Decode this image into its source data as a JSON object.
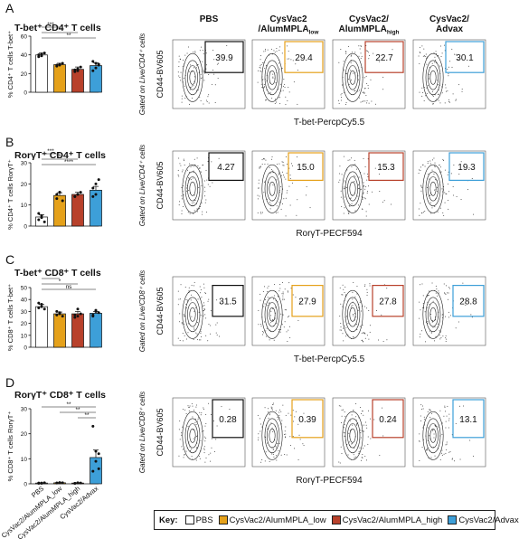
{
  "colors": {
    "pbs": "#ffffff",
    "low": "#e5a11a",
    "high": "#b8412b",
    "advax": "#3d9fd8"
  },
  "panels": [
    {
      "letter": "A",
      "title": "T-bet⁺ CD4⁺ T cells",
      "ylabel": "% CD4⁺ T cells T-bet⁺",
      "yticks": [
        "0",
        "20",
        "40",
        "60"
      ],
      "sig": [
        "***",
        "***",
        "**"
      ],
      "gate": "Gated on Live/CD4⁺ cells",
      "xlabel": "T-bet-PercpCy5.5",
      "ylabel_flow": "CD44-BV605",
      "gate_values": [
        "39.9",
        "29.4",
        "22.7",
        "30.1"
      ]
    },
    {
      "letter": "B",
      "title": "RorγT⁺ CD4⁺ T cells",
      "ylabel": "% CD4⁺ T cells RorγT⁺",
      "yticks": [
        "0",
        "10",
        "20",
        "30"
      ],
      "sig": [
        "***",
        "***",
        "****"
      ],
      "gate": "Gated on Live/CD4⁺ cells",
      "xlabel": "RorγT-PECF594",
      "ylabel_flow": "CD44-BV605",
      "gate_values": [
        "4.27",
        "15.0",
        "15.3",
        "19.3"
      ]
    },
    {
      "letter": "C",
      "title": "T-bet⁺ CD8⁺ T cells",
      "ylabel": "% CD8⁺ T cells T-bet⁺",
      "yticks": [
        "0",
        "10",
        "20",
        "30",
        "40",
        "50"
      ],
      "sig": [
        "*",
        "*",
        "ns"
      ],
      "gate": "Gated on Live/CD8⁺ cells",
      "xlabel": "T-bet-PercpCy5.5",
      "ylabel_flow": "CD44-BV605",
      "gate_values": [
        "31.5",
        "27.9",
        "27.8",
        "28.8"
      ]
    },
    {
      "letter": "D",
      "title": "RorγT⁺ CD8⁺ T cells",
      "ylabel": "% CD8⁺ T cells RorγT⁺",
      "yticks": [
        "0",
        "10",
        "20",
        "30"
      ],
      "sig": [
        "**",
        "**",
        "**"
      ],
      "gate": "Gated on Live/CD8⁺ cells",
      "xlabel": "RorγT-PECF594",
      "ylabel_flow": "CD44-BV605",
      "gate_values": [
        "0.28",
        "0.39",
        "0.24",
        "13.1"
      ]
    }
  ],
  "column_headers": [
    "PBS",
    "CysVac2\n/AlumMPLA_low",
    "CysVac2/\nAlumMPLA_high",
    "CysVac2/\nAdvax"
  ],
  "x_categories": [
    "PBS",
    "CysVac2/AlumMPLA_low",
    "CysVac2/AlumMPLA_high",
    "CysVac2/Advax"
  ],
  "key": {
    "label": "Key:",
    "items": [
      "PBS",
      "CysVac2/AlumMPLA_low",
      "CysVac2/AlumMPLA_high",
      "CysVac2/Advax"
    ]
  },
  "chart_data": [
    {
      "type": "bar",
      "title": "T-bet⁺ CD4⁺ T cells",
      "ylabel": "% CD4⁺ T cells T-bet⁺",
      "ylim": [
        0,
        60
      ],
      "categories": [
        "PBS",
        "CysVac2/AlumMPLA_low",
        "CysVac2/AlumMPLA_high",
        "CysVac2/Advax"
      ],
      "values": [
        39.9,
        29.5,
        24.5,
        28.5
      ],
      "errors": [
        2.0,
        1.5,
        2.5,
        3.0
      ],
      "points": [
        [
          38,
          41,
          42,
          40,
          39
        ],
        [
          28,
          30,
          31,
          29,
          29
        ],
        [
          22,
          25,
          27,
          24,
          23
        ],
        [
          23,
          26,
          29,
          33,
          31,
          30
        ]
      ]
    },
    {
      "type": "bar",
      "title": "RorγT⁺ CD4⁺ T cells",
      "ylabel": "% CD4⁺ T cells RorγT⁺",
      "ylim": [
        0,
        30
      ],
      "categories": [
        "PBS",
        "CysVac2/AlumMPLA_low",
        "CysVac2/AlumMPLA_high",
        "CysVac2/Advax"
      ],
      "values": [
        4.3,
        14.5,
        15.0,
        17.0
      ],
      "errors": [
        1.0,
        1.3,
        1.0,
        1.8
      ],
      "points": [
        [
          3,
          5,
          2,
          6,
          4
        ],
        [
          13,
          16,
          12,
          15,
          16
        ],
        [
          14,
          15,
          16,
          14,
          15
        ],
        [
          14,
          20,
          22,
          18,
          15
        ]
      ]
    },
    {
      "type": "bar",
      "title": "T-bet⁺ CD8⁺ T cells",
      "ylabel": "% CD8⁺ T cells T-bet⁺",
      "ylim": [
        0,
        50
      ],
      "categories": [
        "PBS",
        "CysVac2/AlumMPLA_low",
        "CysVac2/AlumMPLA_high",
        "CysVac2/Advax"
      ],
      "values": [
        34.0,
        28.0,
        28.0,
        28.5
      ],
      "errors": [
        1.8,
        1.5,
        2.0,
        1.5
      ],
      "points": [
        [
          33,
          36,
          32,
          37,
          34
        ],
        [
          27,
          29,
          26,
          30,
          28
        ],
        [
          25,
          32,
          28,
          27,
          26
        ],
        [
          27,
          30,
          29,
          26,
          31
        ]
      ]
    },
    {
      "type": "bar",
      "title": "RorγT⁺ CD8⁺ T cells",
      "ylabel": "% CD8⁺ T cells RorγT⁺",
      "ylim": [
        0,
        30
      ],
      "categories": [
        "PBS",
        "CysVac2/AlumMPLA_low",
        "CysVac2/AlumMPLA_high",
        "CysVac2/Advax"
      ],
      "values": [
        0.3,
        0.4,
        0.3,
        10.5
      ],
      "errors": [
        0.1,
        0.1,
        0.1,
        3.0
      ],
      "points": [
        [
          0.2,
          0.3,
          0.4,
          0.3,
          0.2
        ],
        [
          0.3,
          0.5,
          0.4,
          0.3,
          0.4
        ],
        [
          0.2,
          0.3,
          0.3,
          0.2,
          0.4
        ],
        [
          5,
          9,
          12,
          23,
          13,
          6
        ]
      ]
    }
  ]
}
